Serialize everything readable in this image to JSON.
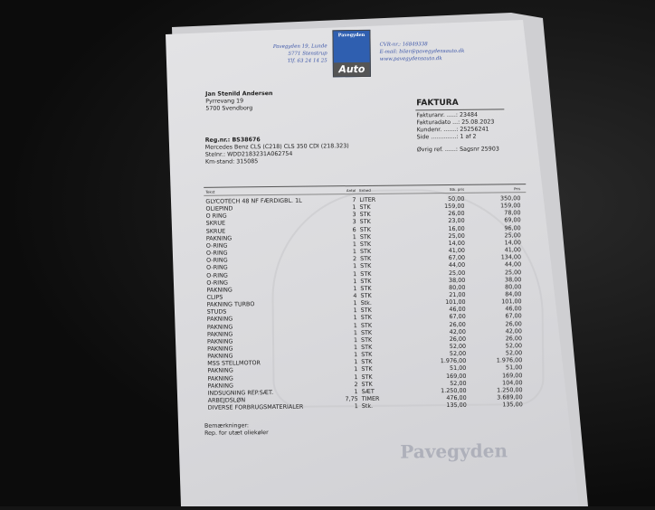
{
  "company": {
    "address": [
      "Pavegyden 19, Lunde",
      "5771 Stenstrup",
      "Tlf. 63 24 14 25"
    ],
    "contact": [
      "CVR-nr.: 16849338",
      "E-mail: biler@pavegydensauto.dk",
      "www.pavegydensauto.dk"
    ],
    "logo_top": "Pavegyden",
    "logo_bottom": "Auto",
    "watermark": "Pavegyden"
  },
  "customer": {
    "name": "Jan Stenild Andersen",
    "street": "Pyrrevang 19",
    "city": "5700 Svendborg"
  },
  "vehicle": {
    "reg": "Reg.nr.: BS38676",
    "model": "Mercedes Benz CLS (C218) CLS 350 CDI (218.323)",
    "vin": "Stelnr.: WDD2183231A062754",
    "km": "Km-stand: 315085"
  },
  "invoice": {
    "title": "FAKTURA",
    "lines": [
      {
        "label": "Fakturanr. .....:",
        "value": "23484"
      },
      {
        "label": "Fakturadato ...:",
        "value": "25.08.2023"
      },
      {
        "label": "Kundenr. .......:",
        "value": "25256241"
      },
      {
        "label": "Side ..............:",
        "value": "1 af 2"
      }
    ],
    "ref_label": "Øvrig ref. ......:",
    "ref_value": "Sagsnr 25903"
  },
  "table": {
    "headers": [
      "Tekst",
      "Antal",
      "Enhed",
      "Stk. pris",
      "Pris"
    ],
    "rows": [
      [
        "GLYCOTECH 48 NF FÆRDIGBL. 1L",
        "7",
        "LITER",
        "50,00",
        "350,00"
      ],
      [
        "OLIEPIND",
        "1",
        "STK",
        "159,00",
        "159,00"
      ],
      [
        "O RING",
        "3",
        "STK",
        "26,00",
        "78,00"
      ],
      [
        "SKRUE",
        "3",
        "STK",
        "23,00",
        "69,00"
      ],
      [
        "SKRUE",
        "6",
        "STK",
        "16,00",
        "96,00"
      ],
      [
        "PAKNING",
        "1",
        "STK",
        "25,00",
        "25,00"
      ],
      [
        "O-RING",
        "1",
        "STK",
        "14,00",
        "14,00"
      ],
      [
        "O-RING",
        "1",
        "STK",
        "41,00",
        "41,00"
      ],
      [
        "O-RING",
        "2",
        "STK",
        "67,00",
        "134,00"
      ],
      [
        "O-RING",
        "1",
        "STK",
        "44,00",
        "44,00"
      ],
      [
        "O-RING",
        "1",
        "STK",
        "25,00",
        "25,00"
      ],
      [
        "O-RING",
        "1",
        "STK",
        "38,00",
        "38,00"
      ],
      [
        "PAKNING",
        "1",
        "STK",
        "80,00",
        "80,00"
      ],
      [
        "CLIPS",
        "4",
        "STK",
        "21,00",
        "84,00"
      ],
      [
        "PAKNING TURBO",
        "1",
        "Stk.",
        "101,00",
        "101,00"
      ],
      [
        "STUDS",
        "1",
        "STK",
        "46,00",
        "46,00"
      ],
      [
        "PAKNING",
        "1",
        "STK",
        "67,00",
        "67,00"
      ],
      [
        "PAKNING",
        "1",
        "STK",
        "26,00",
        "26,00"
      ],
      [
        "PAKNING",
        "1",
        "STK",
        "42,00",
        "42,00"
      ],
      [
        "PAKNING",
        "1",
        "STK",
        "26,00",
        "26,00"
      ],
      [
        "PAKNING",
        "1",
        "STK",
        "52,00",
        "52,00"
      ],
      [
        "PAKNING",
        "1",
        "STK",
        "52,00",
        "52,00"
      ],
      [
        "MSS STELLMOTOR",
        "1",
        "STK",
        "1.976,00",
        "1.976,00"
      ],
      [
        "PAKNING",
        "1",
        "STK",
        "51,00",
        "51,00"
      ],
      [
        "PAKNING",
        "1",
        "STK",
        "169,00",
        "169,00"
      ],
      [
        "PAKNING",
        "2",
        "STK",
        "52,00",
        "104,00"
      ],
      [
        "INDSUGNING REP.SÆT.",
        "1",
        "SÆT",
        "1.250,00",
        "1.250,00"
      ],
      [
        "ARBEJDSLØN",
        "7,75",
        "TIMER",
        "476,00",
        "3.689,00"
      ],
      [
        "DIVERSE FORBRUGSMATERIALER",
        "1",
        "Stk.",
        "135,00",
        "135,00"
      ]
    ]
  },
  "remarks": {
    "label": "Bemærkninger:",
    "text": "Rep. for utæt oliekøler"
  }
}
